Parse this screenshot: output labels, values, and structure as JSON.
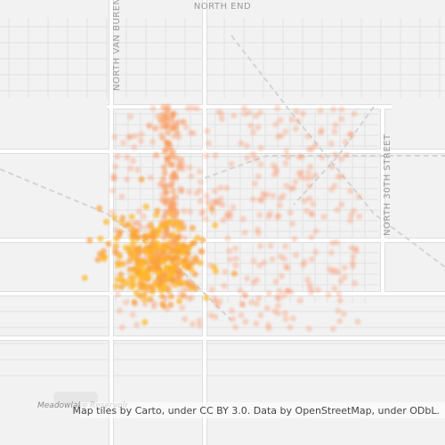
{
  "map": {
    "labels": {
      "north_end": "NORTH END",
      "van_buren": "NORTH VAN BUREN S",
      "thirtieth": "NORTH 30TH STREET",
      "reservoir": "Meadowlake Reservoir"
    },
    "attribution": "Map tiles by Carto, under CC BY 3.0. Data by OpenStreetMap, under ODbL."
  }
}
